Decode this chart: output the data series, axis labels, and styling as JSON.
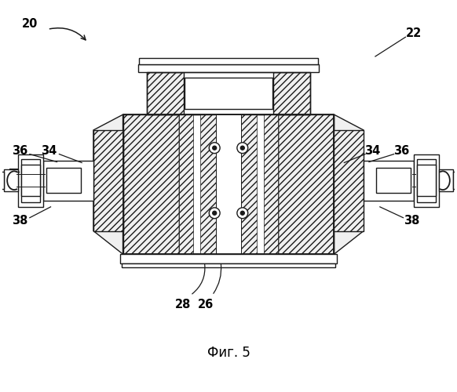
{
  "title": "Фиг. 5",
  "bg_color": "#ffffff",
  "line_color": "#1a1a1a",
  "fig_width": 5.82,
  "fig_height": 5.0,
  "dpi": 100
}
